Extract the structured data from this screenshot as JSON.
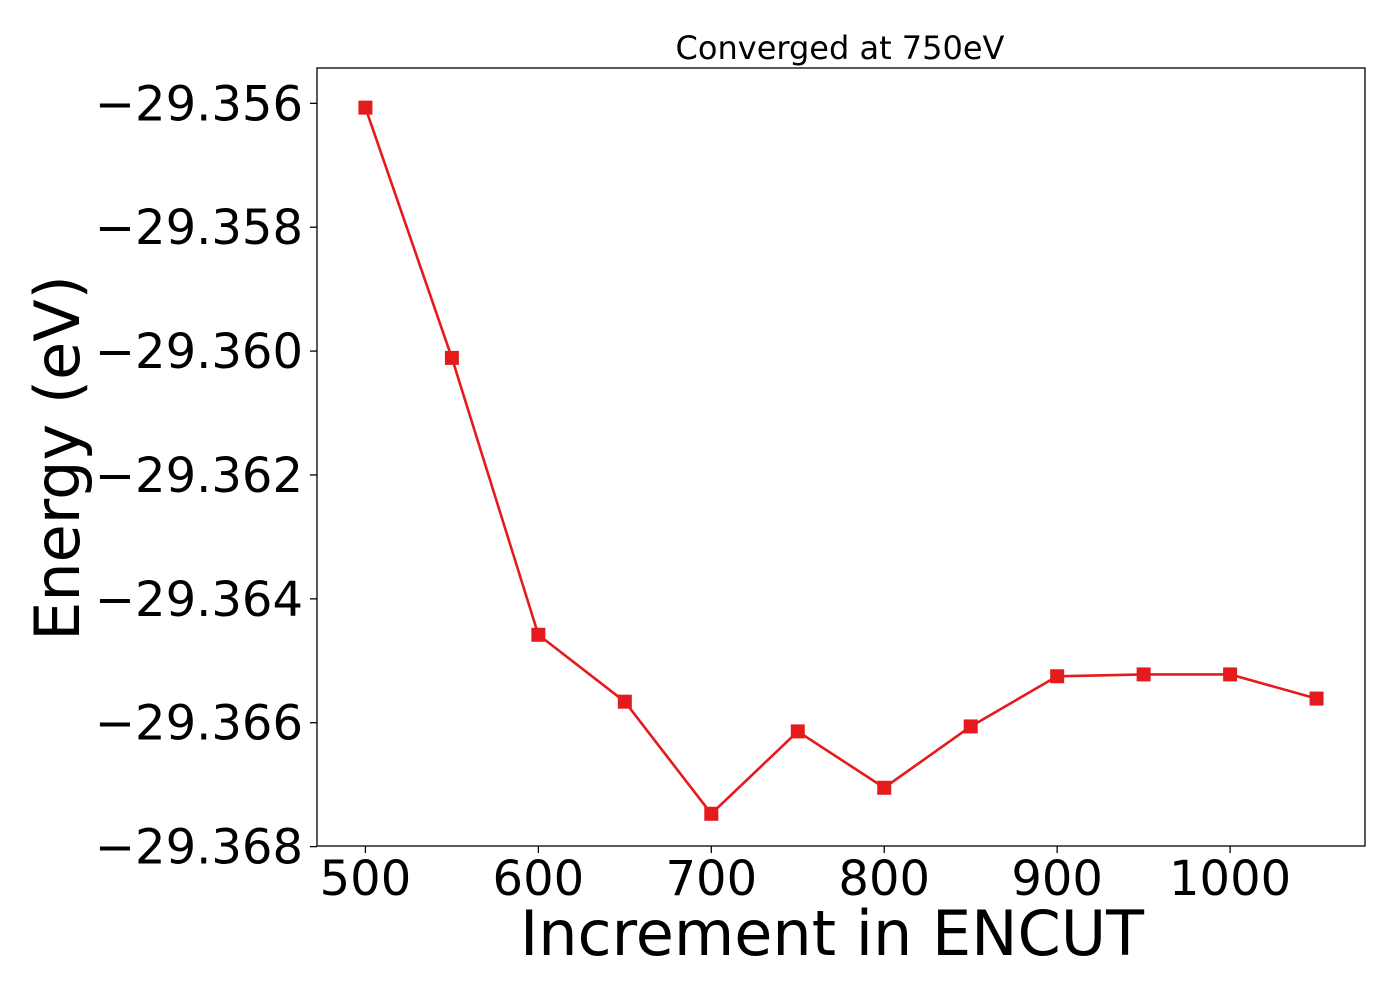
{
  "chart_data": {
    "type": "line",
    "title": "Converged at 750eV",
    "xlabel": "Increment in ENCUT",
    "ylabel": "Energy (eV)",
    "xlim": [
      472,
      1078
    ],
    "ylim": [
      -29.36799,
      -29.35543
    ],
    "x_ticks": [
      500,
      600,
      700,
      800,
      900,
      1000
    ],
    "y_ticks": [
      -29.356,
      -29.358,
      -29.36,
      -29.362,
      -29.364,
      -29.366,
      -29.368
    ],
    "y_tick_labels": [
      "−29.356",
      "−29.358",
      "−29.360",
      "−29.362",
      "−29.364",
      "−29.366",
      "−29.368"
    ],
    "grid": false,
    "legend": "none",
    "series": [
      {
        "color": "#e41a1c",
        "marker": "square",
        "x": [
          500,
          550,
          600,
          650,
          700,
          750,
          800,
          850,
          900,
          950,
          1000,
          1050
        ],
        "values": [
          -29.35607,
          -29.36011,
          -29.36458,
          -29.36566,
          -29.36747,
          -29.36614,
          -29.36705,
          -29.36606,
          -29.36525,
          -29.36522,
          -29.36522,
          -29.36561
        ]
      }
    ]
  }
}
